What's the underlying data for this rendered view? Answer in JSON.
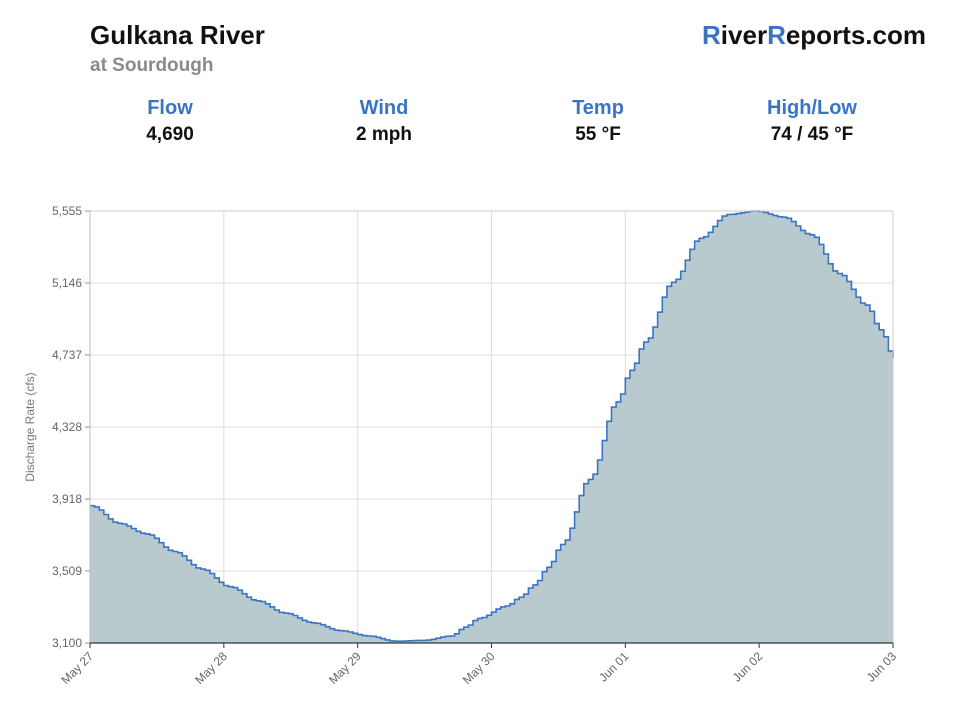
{
  "header": {
    "river_name": "Gulkana River",
    "location": "at Sourdough",
    "brand": {
      "part1": "R",
      "part2": "iver",
      "part3": "R",
      "part4": "eports.com"
    }
  },
  "stats": [
    {
      "label": "Flow",
      "value": "4,690"
    },
    {
      "label": "Wind",
      "value": "2 mph"
    },
    {
      "label": "Temp",
      "value": "55 °F"
    },
    {
      "label": "High/Low",
      "value": "74 / 45 °F"
    }
  ],
  "chart_data": {
    "type": "area",
    "ylabel": "Discharge Rate (cfs)",
    "ylim": [
      3100,
      5555
    ],
    "yticks": [
      "3,100",
      "3,509",
      "3,918",
      "4,328",
      "4,737",
      "5,146",
      "5,555"
    ],
    "xlim": [
      "May 27",
      "Jun 03"
    ],
    "xticks": [
      "May 27",
      "May 28",
      "May 29",
      "May 30",
      "Jun 01",
      "Jun 02",
      "Jun 03"
    ],
    "grid": true,
    "legend": "none",
    "colors": {
      "line": "#3a74c4",
      "fill": "#b9cace",
      "grid": "#dddddd"
    },
    "series": [
      {
        "x_days": [
          0,
          0.5,
          1,
          1.5,
          2,
          2.5,
          3,
          3.5,
          4,
          4.5,
          5,
          5.5,
          6,
          6.5,
          6.75,
          7,
          7.5,
          7.75,
          8,
          8.25,
          8.5,
          9,
          9.5,
          9.75,
          10,
          10.5,
          11,
          11.5,
          12,
          12.5,
          13,
          13.5,
          14,
          14.25,
          14.5
        ],
        "y": [
          3880,
          3780,
          3720,
          3620,
          3520,
          3420,
          3340,
          3270,
          3215,
          3170,
          3140,
          3110,
          3115,
          3140,
          3190,
          3240,
          3310,
          3360,
          3430,
          3530,
          3660,
          4030,
          4470,
          4650,
          4810,
          5150,
          5400,
          5535,
          5555,
          5520,
          5420,
          5200,
          5020,
          4880,
          4720
        ]
      }
    ]
  }
}
